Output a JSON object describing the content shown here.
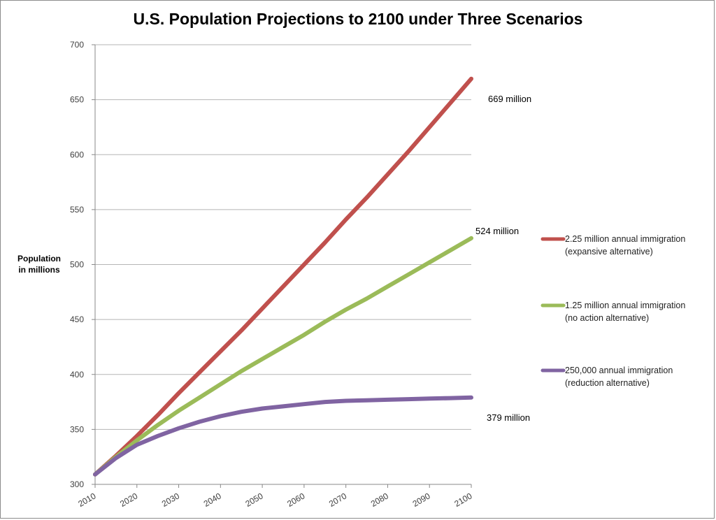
{
  "chart_data": {
    "type": "line",
    "title": "U.S. Population Projections to 2100 under Three Scenarios",
    "xlabel": "",
    "ylabel": "Population in millions",
    "ylabel_lines": [
      "Population",
      "in millions"
    ],
    "xlim": [
      2010,
      2100
    ],
    "ylim": [
      300,
      700
    ],
    "x_ticks": [
      "2010",
      "2020",
      "2030",
      "2040",
      "2050",
      "2060",
      "2070",
      "2080",
      "2090",
      "2100"
    ],
    "y_ticks": [
      "300",
      "350",
      "400",
      "450",
      "500",
      "550",
      "600",
      "650",
      "700"
    ],
    "grid": "horizontal",
    "legend_position": "right",
    "x": [
      2010,
      2015,
      2020,
      2025,
      2030,
      2035,
      2040,
      2045,
      2050,
      2055,
      2060,
      2065,
      2070,
      2075,
      2080,
      2085,
      2090,
      2095,
      2100
    ],
    "series": [
      {
        "name": "2.25 million annual immigration (expansive alternative)",
        "legend_lines": [
          "2.25 million annual immigration",
          "(expansive alternative)"
        ],
        "color": "#c0504d",
        "values": [
          309,
          326,
          344,
          363,
          383,
          402,
          421,
          440,
          460,
          480,
          500,
          520,
          541,
          561,
          582,
          603,
          625,
          647,
          669
        ],
        "end_label": "669 million"
      },
      {
        "name": "1.25 million annual immigration (no action alternative)",
        "legend_lines": [
          "1.25 million annual immigration",
          "(no action alternative)"
        ],
        "color": "#9bbb59",
        "values": [
          309,
          325,
          340,
          354,
          367,
          379,
          391,
          403,
          414,
          425,
          436,
          448,
          459,
          469,
          480,
          491,
          502,
          513,
          524
        ],
        "end_label": "524 million"
      },
      {
        "name": "250,000 annual immigration (reduction alternative)",
        "legend_lines": [
          "250,000 annual immigration",
          "(reduction alternative)"
        ],
        "color": "#8064a2",
        "values": [
          309,
          324,
          336,
          344,
          351,
          357,
          362,
          366,
          369,
          371,
          373,
          375,
          376,
          376.5,
          377,
          377.5,
          378,
          378.5,
          379
        ],
        "end_label": "379 million"
      }
    ]
  }
}
